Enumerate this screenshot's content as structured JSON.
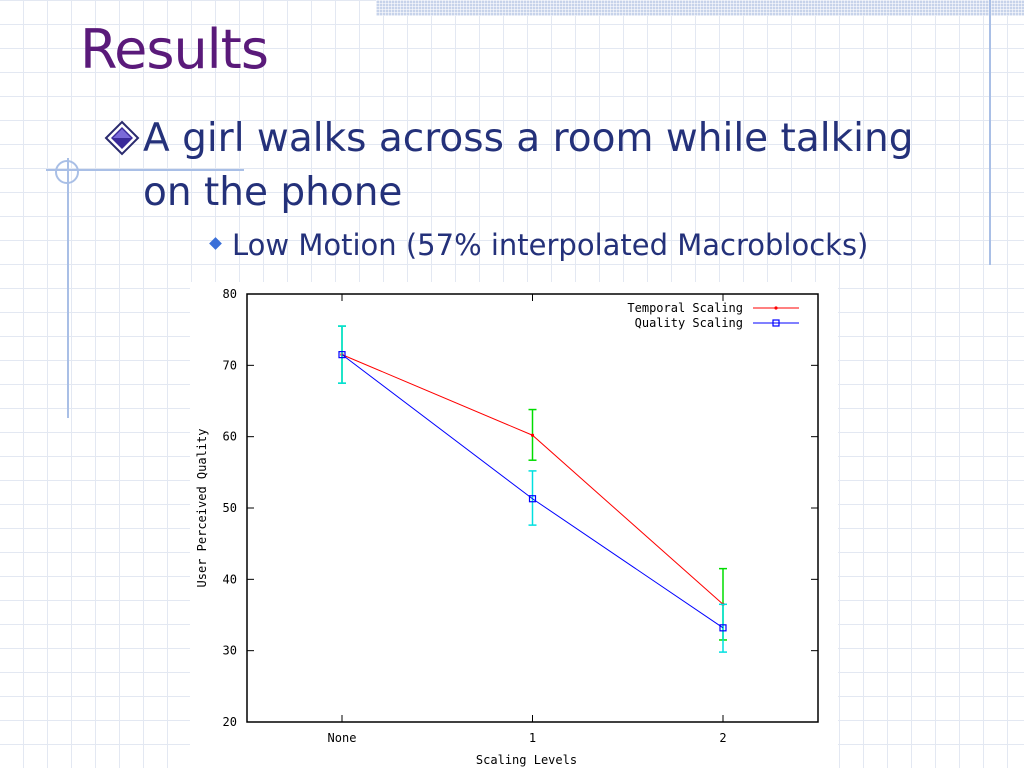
{
  "slide": {
    "title": "Results",
    "bullet_main": "A girl walks across a room while talking on the phone",
    "bullet_sub": "Low Motion (57% interpolated Macroblocks)"
  },
  "colors": {
    "title": "#5a1a7a",
    "text": "#24317a",
    "temporal_series": "#ff0000",
    "quality_series": "#0000ff",
    "temporal_errorbar": "#00dd00",
    "quality_errorbar": "#00e0e0"
  },
  "chart_data": {
    "type": "line",
    "title": "",
    "xlabel": "Scaling Levels",
    "ylabel": "User Perceived Quality",
    "categories": [
      "None",
      "1",
      "2"
    ],
    "ylim": [
      20,
      80
    ],
    "yticks": [
      "20",
      "30",
      "40",
      "50",
      "60",
      "70",
      "80"
    ],
    "grid": false,
    "legend_position": "top-right",
    "series": [
      {
        "name": "Temporal Scaling",
        "values": [
          71.5,
          60.2,
          36.5
        ],
        "error_low": [
          67.5,
          56.7,
          31.5
        ],
        "error_high": [
          75.5,
          63.8,
          41.5
        ],
        "line_color": "#ff0000",
        "error_color": "#00dd00",
        "marker": "diamond"
      },
      {
        "name": "Quality Scaling",
        "values": [
          71.5,
          51.3,
          33.2
        ],
        "error_low": [
          67.5,
          47.6,
          29.8
        ],
        "error_high": [
          75.5,
          55.2,
          36.5
        ],
        "line_color": "#0000ff",
        "error_color": "#00e0e0",
        "marker": "square"
      }
    ]
  }
}
